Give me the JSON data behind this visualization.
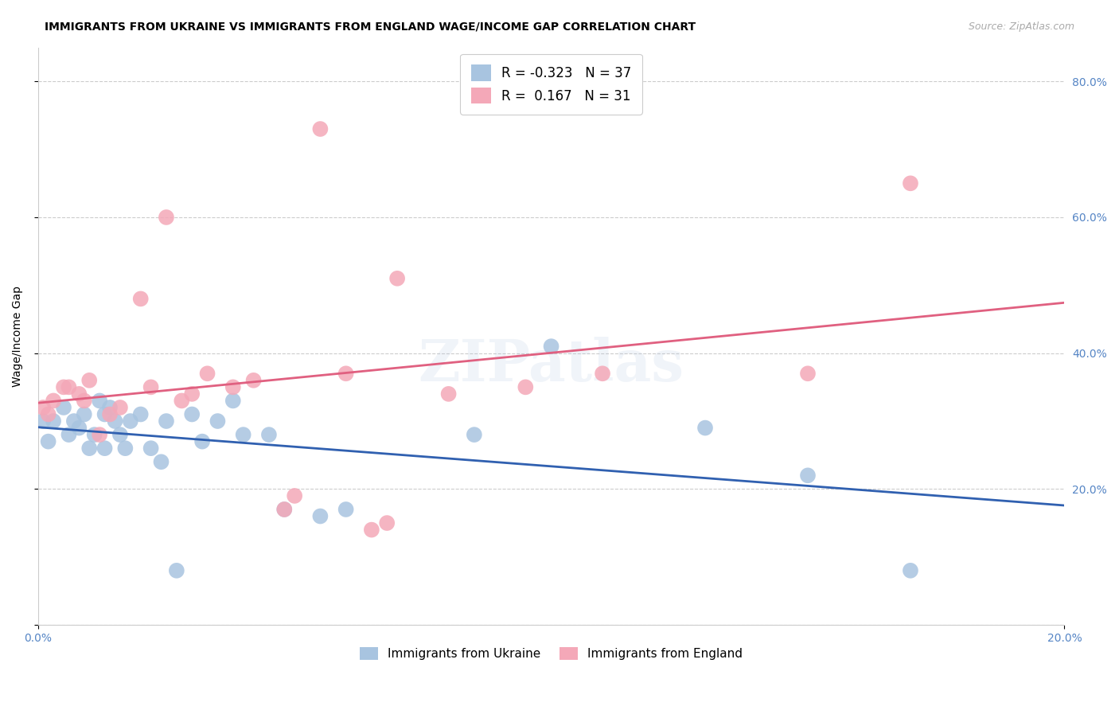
{
  "title": "IMMIGRANTS FROM UKRAINE VS IMMIGRANTS FROM ENGLAND WAGE/INCOME GAP CORRELATION CHART",
  "source": "Source: ZipAtlas.com",
  "ylabel": "Wage/Income Gap",
  "ukraine_R": -0.323,
  "ukraine_N": 37,
  "england_R": 0.167,
  "england_N": 31,
  "ukraine_color": "#a8c4e0",
  "england_color": "#f4a8b8",
  "ukraine_line_color": "#3060b0",
  "england_line_color": "#e06080",
  "ukraine_x": [
    0.001,
    0.002,
    0.003,
    0.005,
    0.006,
    0.007,
    0.008,
    0.009,
    0.01,
    0.011,
    0.012,
    0.013,
    0.013,
    0.014,
    0.015,
    0.016,
    0.017,
    0.018,
    0.02,
    0.022,
    0.024,
    0.025,
    0.027,
    0.03,
    0.032,
    0.035,
    0.038,
    0.04,
    0.045,
    0.048,
    0.055,
    0.06,
    0.085,
    0.1,
    0.13,
    0.15,
    0.17
  ],
  "ukraine_y": [
    0.3,
    0.27,
    0.3,
    0.32,
    0.28,
    0.3,
    0.29,
    0.31,
    0.26,
    0.28,
    0.33,
    0.31,
    0.26,
    0.32,
    0.3,
    0.28,
    0.26,
    0.3,
    0.31,
    0.26,
    0.24,
    0.3,
    0.08,
    0.31,
    0.27,
    0.3,
    0.33,
    0.28,
    0.28,
    0.17,
    0.16,
    0.17,
    0.28,
    0.41,
    0.29,
    0.22,
    0.08
  ],
  "england_x": [
    0.001,
    0.002,
    0.003,
    0.005,
    0.006,
    0.008,
    0.009,
    0.01,
    0.012,
    0.014,
    0.016,
    0.02,
    0.022,
    0.025,
    0.028,
    0.03,
    0.033,
    0.038,
    0.042,
    0.048,
    0.05,
    0.055,
    0.06,
    0.065,
    0.068,
    0.07,
    0.08,
    0.095,
    0.11,
    0.15,
    0.17
  ],
  "england_y": [
    0.32,
    0.31,
    0.33,
    0.35,
    0.35,
    0.34,
    0.33,
    0.36,
    0.28,
    0.31,
    0.32,
    0.48,
    0.35,
    0.6,
    0.33,
    0.34,
    0.37,
    0.35,
    0.36,
    0.17,
    0.19,
    0.73,
    0.37,
    0.14,
    0.15,
    0.51,
    0.34,
    0.35,
    0.37,
    0.37,
    0.65
  ],
  "watermark": "ZIPatlas",
  "background_color": "#ffffff",
  "grid_color": "#cccccc",
  "tick_label_color": "#5585c5",
  "xlim": [
    0.0,
    0.2
  ],
  "ylim": [
    0.0,
    0.85
  ],
  "yticks": [
    0.0,
    0.2,
    0.4,
    0.6,
    0.8
  ],
  "ytick_labels": [
    "",
    "20.0%",
    "40.0%",
    "60.0%",
    "80.0%"
  ],
  "xtick_labels": [
    "0.0%",
    "20.0%"
  ]
}
